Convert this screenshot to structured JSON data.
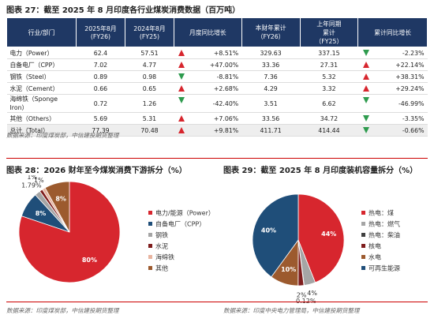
{
  "figure27": {
    "title": "图表 27：截至 2025 年 8 月印度各行业煤炭消费数据（百万吨）",
    "table": {
      "header": [
        "行业/部门",
        "2025年8月\n(FY26)",
        "2024年8月\n(FY25)",
        "月度同比增长",
        "本财年累计\n（FY26）",
        "上年同期\n累计\n（FY25）",
        "累计同比增长"
      ],
      "rows": [
        [
          "电力（Power）",
          "62.4",
          "57.51",
          "+8.51%",
          "329.63",
          "337.15",
          "-2.23%"
        ],
        [
          "自备电厂（CPP）",
          "7.02",
          "4.77",
          "+47.00%",
          "33.36",
          "27.31",
          "+22.14%"
        ],
        [
          "钢铁（Steel）",
          "0.89",
          "0.98",
          "-8.81%",
          "7.36",
          "5.32",
          "+38.31%"
        ],
        [
          "水泥（Cement）",
          "0.66",
          "0.65",
          "+2.68%",
          "4.29",
          "3.32",
          "+29.24%"
        ],
        [
          "海绵铁（Sponge Iron）",
          "0.72",
          "1.26",
          "-42.40%",
          "3.51",
          "6.62",
          "-46.99%"
        ],
        [
          "其他（Others）",
          "5.69",
          "5.31",
          "+7.06%",
          "33.56",
          "34.72",
          "-3.35%"
        ],
        [
          "总计（Total）",
          "77.39",
          "70.48",
          "+9.81%",
          "411.71",
          "414.44",
          "-0.66%"
        ]
      ]
    },
    "source": "数据来源：印度煤炭部，中信建投期货整理"
  },
  "chart_data": [
    {
      "type": "pie",
      "title": "图表 28：2026 财年至今煤炭消费下游拆分（%）",
      "labels": [
        "电力/能源（Power）",
        "自备电厂（CPP）",
        "钢铁",
        "水泥",
        "海绵铁",
        "其他"
      ],
      "values": [
        80,
        8,
        1.79,
        1,
        1,
        8
      ],
      "value_labels": [
        "80%",
        "8%",
        "1.79%",
        "1%",
        "1%",
        "8%"
      ],
      "colors": [
        "#d7262e",
        "#1f4e79",
        "#a5a5a5",
        "#7f1d1d",
        "#e8b4a0",
        "#9c5a2e"
      ],
      "source": "数据来源：印度煤炭部，中信建投期货整理"
    },
    {
      "type": "pie",
      "title": "图表 29：截至 2025 年 8 月印度装机容量拆分（%）",
      "labels": [
        "热电：煤",
        "热电：燃气",
        "热电：柴油",
        "核电",
        "水电",
        "可再生能源"
      ],
      "values": [
        44,
        4,
        0.12,
        2,
        10,
        40
      ],
      "value_labels": [
        "44%",
        "4%",
        "0.12%",
        "2%",
        "10%",
        "40%"
      ],
      "colors": [
        "#d7262e",
        "#a5a5a5",
        "#404040",
        "#7f1d1d",
        "#9c5a2e",
        "#1f4e79"
      ],
      "source": "数据来源：印度中央电力管理局，中信建投期货整理"
    }
  ]
}
